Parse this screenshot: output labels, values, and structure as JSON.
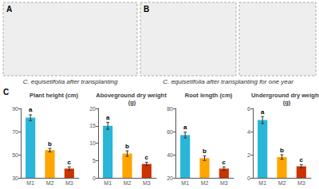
{
  "chart_data": [
    {
      "type": "bar",
      "title": "Plant height (cm)",
      "categories": [
        "M1",
        "M2",
        "M3"
      ],
      "values": [
        82,
        54,
        38
      ],
      "errors": [
        2.5,
        1.5,
        1.5
      ],
      "annotations": [
        "a",
        "b",
        "c"
      ],
      "colors": [
        "#29B6D8",
        "#FFA500",
        "#CC3300"
      ],
      "ylim": [
        30,
        90
      ],
      "yticks": [
        30,
        50,
        70,
        90
      ],
      "grid": false
    },
    {
      "type": "bar",
      "title": "Aboveground dry weight (g)",
      "categories": [
        "M1",
        "M2",
        "M3"
      ],
      "values": [
        15,
        7,
        4
      ],
      "errors": [
        1.0,
        0.8,
        0.5
      ],
      "annotations": [
        "a",
        "b",
        "c"
      ],
      "colors": [
        "#29B6D8",
        "#FFA500",
        "#CC3300"
      ],
      "ylim": [
        0,
        20
      ],
      "yticks": [
        0,
        5,
        10,
        15,
        20
      ],
      "grid": false
    },
    {
      "type": "bar",
      "title": "Root length (cm)",
      "categories": [
        "M1",
        "M2",
        "M3"
      ],
      "values": [
        57,
        37,
        28
      ],
      "errors": [
        2.5,
        2.0,
        1.5
      ],
      "annotations": [
        "a",
        "b",
        "c"
      ],
      "colors": [
        "#29B6D8",
        "#FFA500",
        "#CC3300"
      ],
      "ylim": [
        20,
        80
      ],
      "yticks": [
        20,
        40,
        60,
        80
      ],
      "grid": false
    },
    {
      "type": "bar",
      "title": "Underground dry weight (g)",
      "categories": [
        "M1",
        "M2",
        "M3"
      ],
      "values": [
        5.0,
        1.8,
        1.0
      ],
      "errors": [
        0.3,
        0.2,
        0.15
      ],
      "annotations": [
        "a",
        "b",
        "c"
      ],
      "colors": [
        "#29B6D8",
        "#FFA500",
        "#CC3300"
      ],
      "ylim": [
        0,
        6
      ],
      "yticks": [
        0,
        2,
        4,
        6
      ],
      "grid": false
    }
  ],
  "annotations": [
    "A",
    "B",
    "C",
    "C. equisetifolia after transplanting",
    "C. equisetifolia after transplanting for one year"
  ]
}
